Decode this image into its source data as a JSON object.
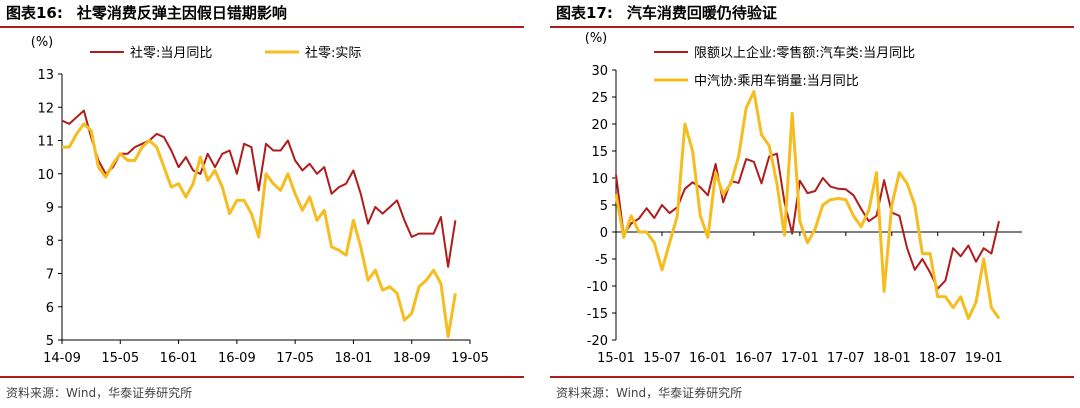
{
  "charts": [
    {
      "title_prefix": "图表16:",
      "title_text": "社零消费反弹主因假日错期影响",
      "source": "资料来源：Wind，华泰证券研究所",
      "chart_data": {
        "type": "line",
        "ylabel": "(%)",
        "ylim": [
          5,
          13
        ],
        "yticks": [
          5,
          6,
          7,
          8,
          9,
          10,
          11,
          12,
          13
        ],
        "xlim": [
          0,
          56
        ],
        "xticks": [
          {
            "i": 0,
            "label": "14-09"
          },
          {
            "i": 8,
            "label": "15-05"
          },
          {
            "i": 16,
            "label": "16-01"
          },
          {
            "i": 24,
            "label": "16-09"
          },
          {
            "i": 32,
            "label": "17-05"
          },
          {
            "i": 40,
            "label": "18-01"
          },
          {
            "i": 48,
            "label": "18-09"
          },
          {
            "i": 56,
            "label": "19-05"
          }
        ],
        "grid": false,
        "legend": "top",
        "series": [
          {
            "name": "社零:当月同比",
            "color": "#b01c1c",
            "values": [
              11.6,
              11.5,
              11.7,
              11.9,
              11.1,
              10.4,
              10.0,
              10.2,
              10.6,
              10.6,
              10.8,
              10.9,
              11.0,
              11.2,
              11.1,
              10.7,
              10.2,
              10.5,
              10.1,
              10.0,
              10.6,
              10.2,
              10.6,
              10.7,
              10.0,
              10.9,
              10.8,
              9.5,
              10.9,
              10.7,
              10.7,
              11.0,
              10.4,
              10.1,
              10.3,
              10.0,
              10.2,
              9.4,
              9.6,
              9.7,
              10.1,
              9.4,
              8.5,
              9.0,
              8.8,
              9.0,
              9.2,
              8.6,
              8.1,
              8.2,
              8.2,
              8.2,
              8.7,
              7.2,
              8.6
            ]
          },
          {
            "name": "社零:实际",
            "color": "#f5bd1f",
            "values": [
              10.8,
              10.8,
              11.2,
              11.5,
              11.3,
              10.2,
              9.9,
              10.3,
              10.6,
              10.4,
              10.4,
              10.8,
              11.0,
              10.8,
              10.2,
              9.6,
              9.7,
              9.3,
              9.7,
              10.5,
              9.8,
              10.1,
              9.6,
              8.8,
              9.2,
              9.2,
              8.8,
              8.1,
              10.0,
              9.7,
              9.5,
              10.0,
              9.4,
              8.9,
              9.3,
              8.6,
              8.9,
              7.8,
              7.7,
              7.55,
              8.6,
              7.8,
              6.8,
              7.1,
              6.5,
              6.6,
              6.4,
              5.6,
              5.8,
              6.6,
              6.8,
              7.1,
              6.7,
              5.1,
              6.4
            ]
          }
        ]
      }
    },
    {
      "title_prefix": "图表17:",
      "title_text": "汽车消费回暖仍待验证",
      "source": "资料来源：Wind，华泰证券研究所",
      "chart_data": {
        "type": "line",
        "ylabel": "(%)",
        "ylim": [
          -20,
          30
        ],
        "yticks": [
          -20,
          -15,
          -10,
          -5,
          0,
          5,
          10,
          15,
          20,
          25,
          30
        ],
        "xlim": [
          0,
          53
        ],
        "xticks": [
          {
            "i": 0,
            "label": "15-01"
          },
          {
            "i": 6,
            "label": "15-07"
          },
          {
            "i": 12,
            "label": "16-01"
          },
          {
            "i": 18,
            "label": "16-07"
          },
          {
            "i": 24,
            "label": "17-01"
          },
          {
            "i": 30,
            "label": "17-07"
          },
          {
            "i": 36,
            "label": "18-01"
          },
          {
            "i": 42,
            "label": "18-07"
          },
          {
            "i": 48,
            "label": "19-01"
          }
        ],
        "grid": false,
        "legend": "top",
        "series": [
          {
            "name": "限额以上企业:零售额:汽车类:当月同比",
            "color": "#b01c1c",
            "values": [
              10.6,
              -0.5,
              1.6,
              2.5,
              4.4,
              2.6,
              5.0,
              3.5,
              4.6,
              8.0,
              9.2,
              8.3,
              6.8,
              12.6,
              5.5,
              9.4,
              9.1,
              13.5,
              13.0,
              9.0,
              14.0,
              14.5,
              5.5,
              -0.3,
              9.5,
              7.2,
              7.6,
              10.0,
              8.4,
              8.0,
              7.9,
              6.8,
              4.3,
              2.0,
              3.0,
              9.6,
              3.6,
              3.0,
              -3.0,
              -7.0,
              -5.0,
              -7.5,
              -10.5,
              -9.0,
              -3.0,
              -4.5,
              -2.5,
              -5.5,
              -3.0,
              -4.0,
              2.0
            ]
          },
          {
            "name": "中汽协:乘用车销量:当月同比",
            "color": "#f5bd1f",
            "values": [
              7.0,
              -1.0,
              3.0,
              0.0,
              0.0,
              -2.0,
              -7.0,
              -2.0,
              3.0,
              20.0,
              15.0,
              3.0,
              -1.0,
              11.0,
              7.0,
              9.0,
              14.0,
              23.0,
              26.0,
              18.0,
              16.0,
              9.0,
              -0.6,
              22.0,
              2.0,
              -2.0,
              0.6,
              5.0,
              6.0,
              6.2,
              6.0,
              3.0,
              1.0,
              4.0,
              11.0,
              -11.0,
              5.0,
              11.0,
              9.0,
              5.0,
              -4.0,
              -4.0,
              -12.0,
              -12.0,
              -14.0,
              -12.0,
              -16.0,
              -13.0,
              -5.0,
              -14.0,
              -16.0
            ]
          }
        ]
      }
    }
  ]
}
